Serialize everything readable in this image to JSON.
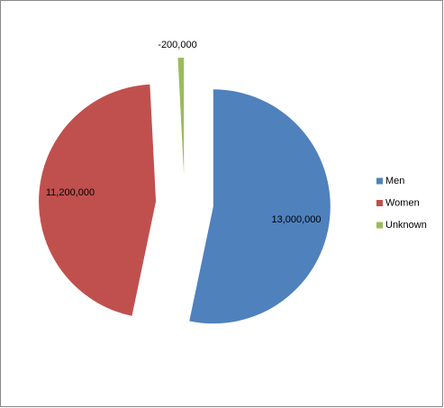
{
  "chart_data": {
    "type": "pie",
    "categories": [
      "Men",
      "Women",
      "Unknown"
    ],
    "values": [
      13000000,
      11200000,
      -200000
    ],
    "value_labels": [
      "13,000,000",
      "11,200,000",
      "-200,000"
    ],
    "colors": [
      "#4f81bd",
      "#c0504d",
      "#9bbb59"
    ],
    "legend": "right"
  }
}
